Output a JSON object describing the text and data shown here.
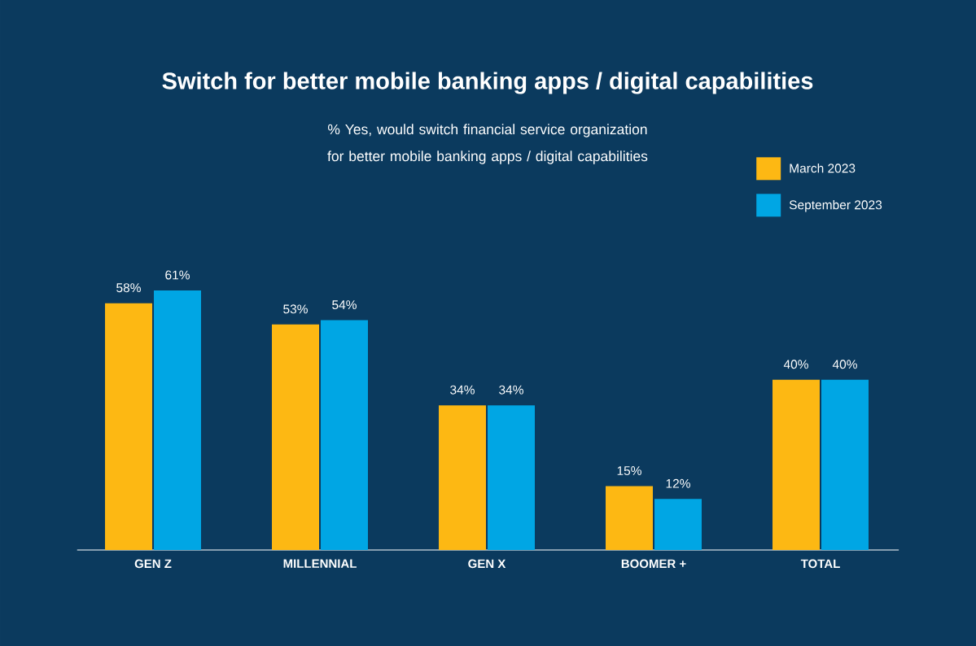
{
  "chart_data": {
    "type": "bar",
    "title": "Switch for better mobile banking apps / digital capabilities",
    "subtitle": "% Yes, would switch financial service organization for better mobile banking apps / digital capabilities",
    "categories": [
      "GEN Z",
      "MILLENNIAL",
      "GEN X",
      "BOOMER +",
      "TOTAL"
    ],
    "series": [
      {
        "name": "March 2023",
        "color": "#fdb813",
        "values": [
          58,
          53,
          34,
          15,
          40
        ],
        "value_labels": [
          "58%",
          "53%",
          "34%",
          "15%",
          "40%"
        ]
      },
      {
        "name": "September 2023",
        "color": "#00a6e4",
        "values": [
          61,
          54,
          34,
          12,
          40
        ],
        "value_labels": [
          "61%",
          "54%",
          "34%",
          "12%",
          "40%"
        ]
      }
    ],
    "legend": "top right"
  }
}
